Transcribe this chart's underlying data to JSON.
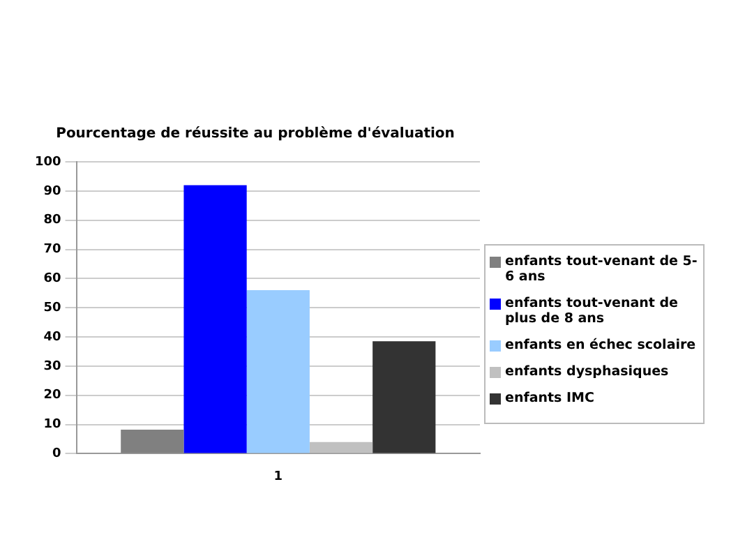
{
  "chart_data": {
    "type": "bar",
    "title": "Pourcentage de réussite au problème d'évaluation",
    "categories": [
      "1"
    ],
    "series": [
      {
        "name": "enfants tout-venant de 5-6 ans",
        "color": "#808080",
        "values": [
          8.2
        ]
      },
      {
        "name": "enfants tout-venant de plus de 8 ans",
        "color": "#0000ff",
        "values": [
          92
        ]
      },
      {
        "name": "enfants en échec scolaire",
        "color": "#99ccff",
        "values": [
          56
        ]
      },
      {
        "name": "enfants dysphasiques",
        "color": "#c0c0c0",
        "values": [
          4
        ]
      },
      {
        "name": "enfants IMC",
        "color": "#333333",
        "values": [
          38.5
        ]
      }
    ],
    "ylim": [
      0,
      100
    ],
    "yticks": [
      0,
      10,
      20,
      30,
      40,
      50,
      60,
      70,
      80,
      90,
      100
    ],
    "grid": "y",
    "legend": "right"
  }
}
